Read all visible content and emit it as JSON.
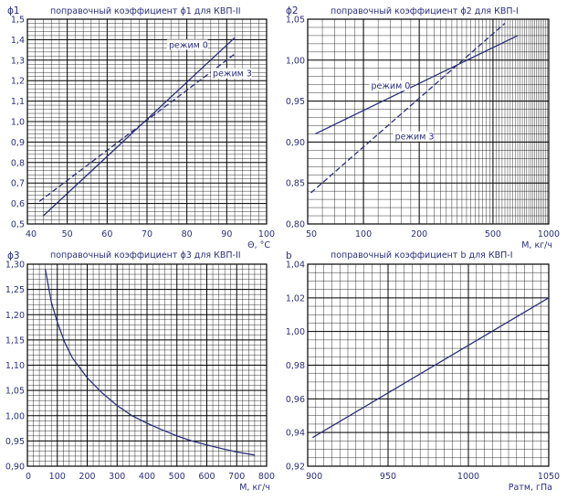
{
  "chart_data": [
    {
      "id": "phi1",
      "type": "line",
      "title": "поправочный коэффициент  ϕ1 для КВП-II",
      "ylabel": "ϕ1",
      "xlabel": "Θ, °C",
      "xlim": [
        40,
        100
      ],
      "ylim": [
        0.5,
        1.5
      ],
      "xticks": [
        40,
        50,
        60,
        70,
        80,
        90,
        100
      ],
      "xtick_labels": [
        "40",
        "50",
        "60",
        "70",
        "80",
        "90",
        "100"
      ],
      "yticks": [
        0.5,
        0.6,
        0.7,
        0.8,
        0.9,
        1.0,
        1.1,
        1.2,
        1.3,
        1.4,
        1.5
      ],
      "ytick_labels": [
        "0,5",
        "0,6",
        "0,7",
        "0,8",
        "0,9",
        "1,0",
        "1,1",
        "1,2",
        "1,3",
        "1,4",
        "1,5"
      ],
      "grid": true,
      "series": [
        {
          "name": "режим 0",
          "style": "solid",
          "x": [
            44,
            92
          ],
          "y": [
            0.54,
            1.41
          ]
        },
        {
          "name": "режим 3",
          "style": "dashed",
          "x": [
            43,
            92
          ],
          "y": [
            0.61,
            1.33
          ]
        }
      ],
      "annotations": [
        {
          "text": "режим 0",
          "x": 75.5,
          "y": 1.36
        },
        {
          "text": "режим 3",
          "x": 86.5,
          "y": 1.22
        }
      ]
    },
    {
      "id": "phi2",
      "type": "line",
      "title": "поправочный коэффициент  ϕ2 для КВП-I",
      "ylabel": "ϕ2",
      "xlabel": "M, кг/ч",
      "xscale": "log",
      "xlim": [
        50,
        1000
      ],
      "ylim": [
        0.8,
        1.05
      ],
      "xticks": [
        50,
        100,
        200,
        500,
        1000
      ],
      "xtick_labels": [
        "50",
        "100",
        "200",
        "500",
        "1000"
      ],
      "yticks": [
        0.8,
        0.85,
        0.9,
        0.95,
        1.0,
        1.05
      ],
      "ytick_labels": [
        "0,80",
        "0,85",
        "0,90",
        "0,95",
        "1,00",
        "1,05"
      ],
      "grid": true,
      "series": [
        {
          "name": "режим 0",
          "style": "solid",
          "x": [
            55,
            680
          ],
          "y": [
            0.91,
            1.03
          ]
        },
        {
          "name": "режим 3",
          "style": "dashed",
          "x": [
            52,
            580
          ],
          "y": [
            0.838,
            1.045
          ]
        }
      ],
      "annotations": [
        {
          "text": "режим 0",
          "x": 110,
          "y": 0.965
        },
        {
          "text": "режим 3",
          "x": 148,
          "y": 0.903
        }
      ]
    },
    {
      "id": "phi3",
      "type": "line",
      "title": "поправочный коэффициент  ϕ3 для КВП-II",
      "ylabel": "ϕ3",
      "xlabel": "M, кг/ч",
      "xlim": [
        0,
        800
      ],
      "ylim": [
        0.9,
        1.3
      ],
      "xticks": [
        0,
        100,
        200,
        300,
        400,
        500,
        600,
        700,
        800
      ],
      "xtick_labels": [
        "0",
        "100",
        "200",
        "300",
        "400",
        "500",
        "600",
        "700",
        "800"
      ],
      "yticks": [
        0.9,
        0.95,
        1.0,
        1.05,
        1.1,
        1.15,
        1.2,
        1.25,
        1.3
      ],
      "ytick_labels": [
        "0,90",
        "0,95",
        "1,00",
        "1,05",
        "1,10",
        "1,15",
        "1,20",
        "1,25",
        "1,30"
      ],
      "grid": true,
      "series": [
        {
          "style": "solid",
          "x": [
            60,
            80,
            100,
            125,
            150,
            200,
            250,
            300,
            350,
            400,
            450,
            500,
            550,
            600,
            650,
            700,
            760
          ],
          "y": [
            1.29,
            1.225,
            1.185,
            1.145,
            1.115,
            1.075,
            1.045,
            1.02,
            1.0,
            0.985,
            0.972,
            0.96,
            0.95,
            0.942,
            0.935,
            0.928,
            0.922
          ]
        }
      ]
    },
    {
      "id": "b",
      "type": "line",
      "title": "поправочный коэффициент b для КВП-I",
      "ylabel": "b",
      "xlabel": "Pатм, гПа",
      "xlim": [
        900,
        1050
      ],
      "ylim": [
        0.92,
        1.04
      ],
      "xticks": [
        900,
        950,
        1000,
        1050
      ],
      "xtick_labels": [
        "900",
        "950",
        "1000",
        "1050"
      ],
      "yticks": [
        0.92,
        0.94,
        0.96,
        0.98,
        1.0,
        1.02,
        1.04
      ],
      "ytick_labels": [
        "0,92",
        "0,94",
        "0,96",
        "0,98",
        "1,00",
        "1,02",
        "1,04"
      ],
      "grid": true,
      "series": [
        {
          "style": "solid",
          "x": [
            903,
            1050
          ],
          "y": [
            0.937,
            1.02
          ]
        }
      ]
    }
  ]
}
